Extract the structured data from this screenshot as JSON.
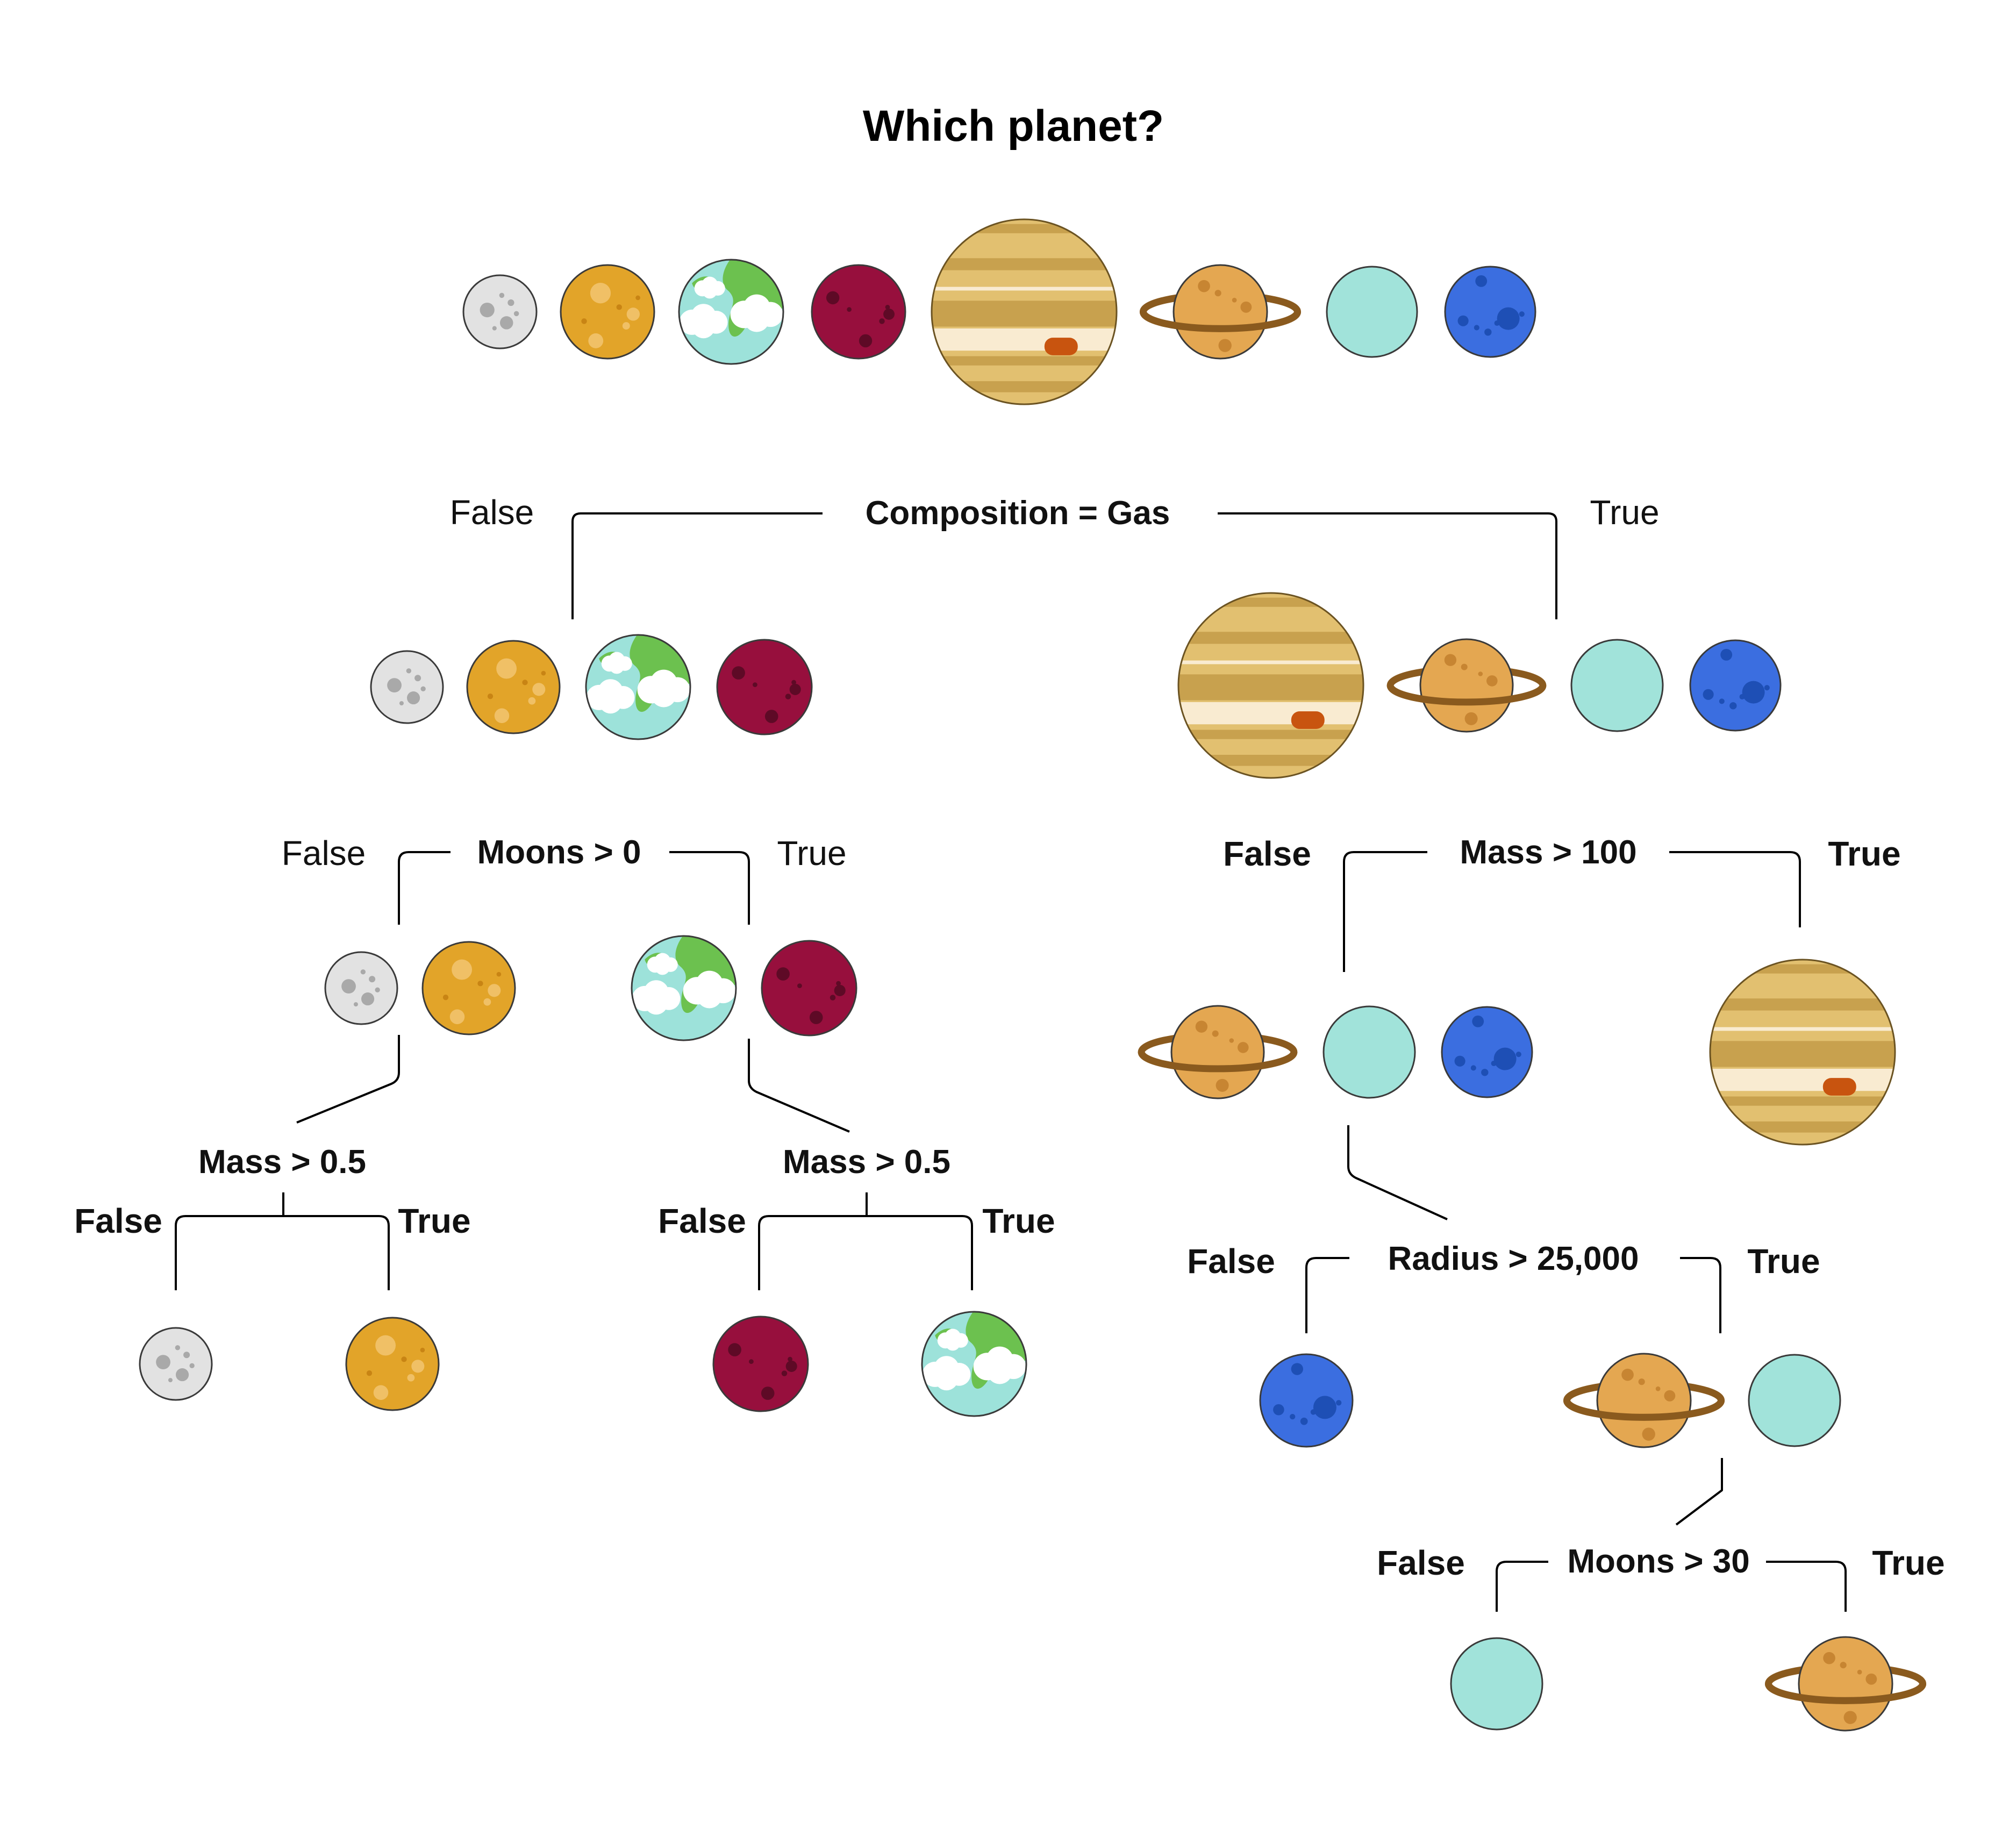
{
  "title": "Which planet?",
  "colors": {
    "mercury": "#e2e2e2",
    "venus": "#e2a429",
    "earth_ocean": "#9de2da",
    "earth_land": "#6cc14f",
    "mars": "#970f3d",
    "jupiter": "#e2c070",
    "jupiter_spot": "#c8540f",
    "saturn": "#e4a751",
    "saturn_ring": "#8a5a1e",
    "uranus": "#a1e3da",
    "neptune": "#3b6ee0"
  },
  "root": {
    "planets": [
      "mercury",
      "venus",
      "earth",
      "mars",
      "jupiter",
      "saturn",
      "uranus",
      "neptune"
    ]
  },
  "nodes": {
    "composition": {
      "condition": "Composition = Gas",
      "false_label": "False",
      "true_label": "True"
    },
    "moons0": {
      "condition": "Moons > 0",
      "false_label": "False",
      "true_label": "True"
    },
    "mass100": {
      "condition": "Mass > 100",
      "false_label": "False",
      "true_label": "True"
    },
    "mass05_a": {
      "condition": "Mass > 0.5",
      "false_label": "False",
      "true_label": "True"
    },
    "mass05_b": {
      "condition": "Mass > 0.5",
      "false_label": "False",
      "true_label": "True"
    },
    "radius": {
      "condition": "Radius > 25,000",
      "false_label": "False",
      "true_label": "True"
    },
    "moons30": {
      "condition": "Moons > 30",
      "false_label": "False",
      "true_label": "True"
    }
  },
  "groups": {
    "rocky": [
      "mercury",
      "venus",
      "earth",
      "mars"
    ],
    "gas": [
      "jupiter",
      "saturn",
      "uranus",
      "neptune"
    ],
    "no_moons": [
      "mercury",
      "venus"
    ],
    "with_moons": [
      "earth",
      "mars"
    ],
    "light_gas": [
      "saturn",
      "uranus",
      "neptune"
    ],
    "heavy_gas": [
      "jupiter"
    ],
    "leaf_mercury": [
      "mercury"
    ],
    "leaf_venus": [
      "venus"
    ],
    "leaf_mars": [
      "mars"
    ],
    "leaf_earth": [
      "earth"
    ],
    "leaf_neptune": [
      "neptune"
    ],
    "big_ice": [
      "saturn",
      "uranus"
    ],
    "leaf_uranus": [
      "uranus"
    ],
    "leaf_saturn": [
      "saturn"
    ]
  }
}
